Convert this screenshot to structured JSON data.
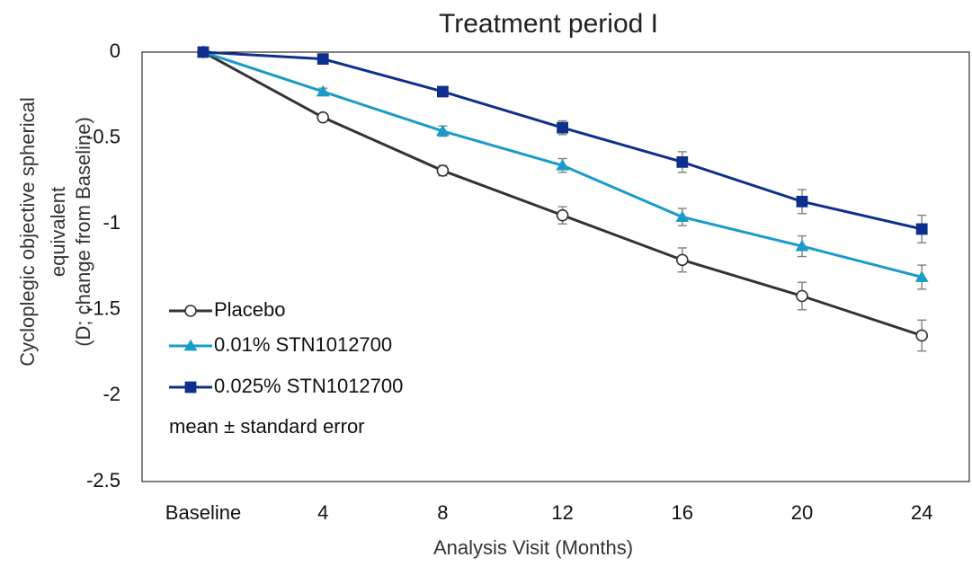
{
  "chart_data": {
    "type": "line",
    "title": "Treatment period I",
    "xlabel": "Analysis Visit (Months)",
    "ylabel": [
      "Cycloplegic objective spherical",
      "equivalent",
      "(D; change from Baseline)"
    ],
    "categories": [
      "Baseline",
      "4",
      "8",
      "12",
      "16",
      "20",
      "24"
    ],
    "ylim": [
      -2.5,
      0
    ],
    "yticks": [
      0,
      -0.5,
      -1,
      -1.5,
      -2,
      -2.5
    ],
    "ytick_labels": [
      "0",
      "-0.5",
      "-1",
      "-1.5",
      "-2",
      "-2.5"
    ],
    "series": [
      {
        "name": "Placebo",
        "color": "#333333",
        "marker": "circle-open",
        "values": [
          0,
          -0.38,
          -0.69,
          -0.95,
          -1.21,
          -1.42,
          -1.65
        ],
        "errors": [
          0,
          0.02,
          0.03,
          0.05,
          0.07,
          0.08,
          0.09
        ]
      },
      {
        "name": "0.01% STN1012700",
        "color": "#1a9bc8",
        "marker": "triangle",
        "values": [
          0,
          -0.23,
          -0.46,
          -0.66,
          -0.96,
          -1.13,
          -1.31
        ],
        "errors": [
          0,
          0.02,
          0.03,
          0.04,
          0.05,
          0.06,
          0.07
        ]
      },
      {
        "name": "0.025% STN1012700",
        "color": "#0f2f8c",
        "marker": "square",
        "values": [
          0,
          -0.04,
          -0.23,
          -0.44,
          -0.64,
          -0.87,
          -1.03
        ],
        "errors": [
          0,
          0.01,
          0.02,
          0.04,
          0.06,
          0.07,
          0.08
        ]
      }
    ],
    "error_color": "#808080",
    "legend_location": "bottom-left",
    "legend_note": "mean ±  standard error",
    "grid": false
  }
}
